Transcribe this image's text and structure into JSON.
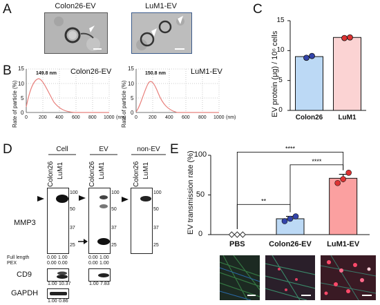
{
  "panels": {
    "A": "A",
    "B": "B",
    "C": "C",
    "D": "D",
    "E": "E"
  },
  "panel_a": {
    "left_title": "Colon26-EV",
    "right_title": "LuM1-EV"
  },
  "panel_b": {
    "left": {
      "peak_label": "149.8 nm",
      "name": "Colon26-EV"
    },
    "right": {
      "peak_label": "150.8 nm",
      "name": "LuM1-EV"
    },
    "ylabel": "Rate of particle (%)",
    "xticks": [
      "0",
      "200",
      "400",
      "600",
      "800",
      "1000"
    ],
    "xunit": "(nm)",
    "yticks": [
      "0",
      "5",
      "10",
      "15"
    ],
    "line_color": "#e8807c"
  },
  "chart_data": [
    {
      "type": "bar",
      "title": "",
      "ylabel": "EV protein (μg) / 10⁶ cells",
      "categories": [
        "Colon26",
        "LuM1"
      ],
      "values": [
        9.0,
        12.2
      ],
      "points": [
        [
          8.8,
          9.1
        ],
        [
          12.1,
          12.2
        ]
      ],
      "ylim": [
        0,
        15
      ],
      "yticks": [
        "0",
        "5",
        "10",
        "15"
      ],
      "colors": [
        "#bcd9f5",
        "#fbd3d3"
      ],
      "point_colors": [
        "#3344aa",
        "#dd3333"
      ]
    },
    {
      "type": "bar",
      "title": "",
      "ylabel": "EV transmission rate (%)",
      "categories": [
        "PBS",
        "Colon26-EV",
        "LuM1-EV"
      ],
      "values": [
        0,
        20,
        71
      ],
      "errors": [
        0,
        3,
        5
      ],
      "points": [
        [
          0,
          0,
          0
        ],
        [
          17,
          20,
          23
        ],
        [
          65,
          70,
          78
        ]
      ],
      "ylim": [
        0,
        100
      ],
      "yticks": [
        "0",
        "50",
        "100"
      ],
      "colors": [
        "#ffffff",
        "#bcd9f5",
        "#fba0a0"
      ],
      "significance": [
        "**",
        "****",
        "****"
      ]
    }
  ],
  "panel_d": {
    "groups": [
      "Cell",
      "EV",
      "non-EV"
    ],
    "lanes": [
      "Colon26",
      "LuM1"
    ],
    "mw_labels": [
      "100",
      "50",
      "37",
      "25"
    ],
    "mmp3_label": "MMP3",
    "full_length_label": "Full length",
    "pex_label": "PEX",
    "cell_values": {
      "full": [
        "0.00",
        "1.00"
      ],
      "pex": [
        "0.00",
        "0.00"
      ]
    },
    "ev_values": {
      "full": [
        "0.00",
        "1.00"
      ],
      "pex": [
        "0.00",
        "1.00"
      ]
    },
    "cd9_label": "CD9",
    "cd9_cell": [
      "1.00",
      "10.37"
    ],
    "cd9_ev": [
      "1.00",
      "7.83"
    ],
    "gapdh_label": "GAPDH",
    "gapdh_cell": [
      "1.00",
      "0.86"
    ]
  },
  "panel_e": {
    "micro_colors": [
      "#1c2a22",
      "#2a1f2a",
      "#3a1a24"
    ]
  }
}
